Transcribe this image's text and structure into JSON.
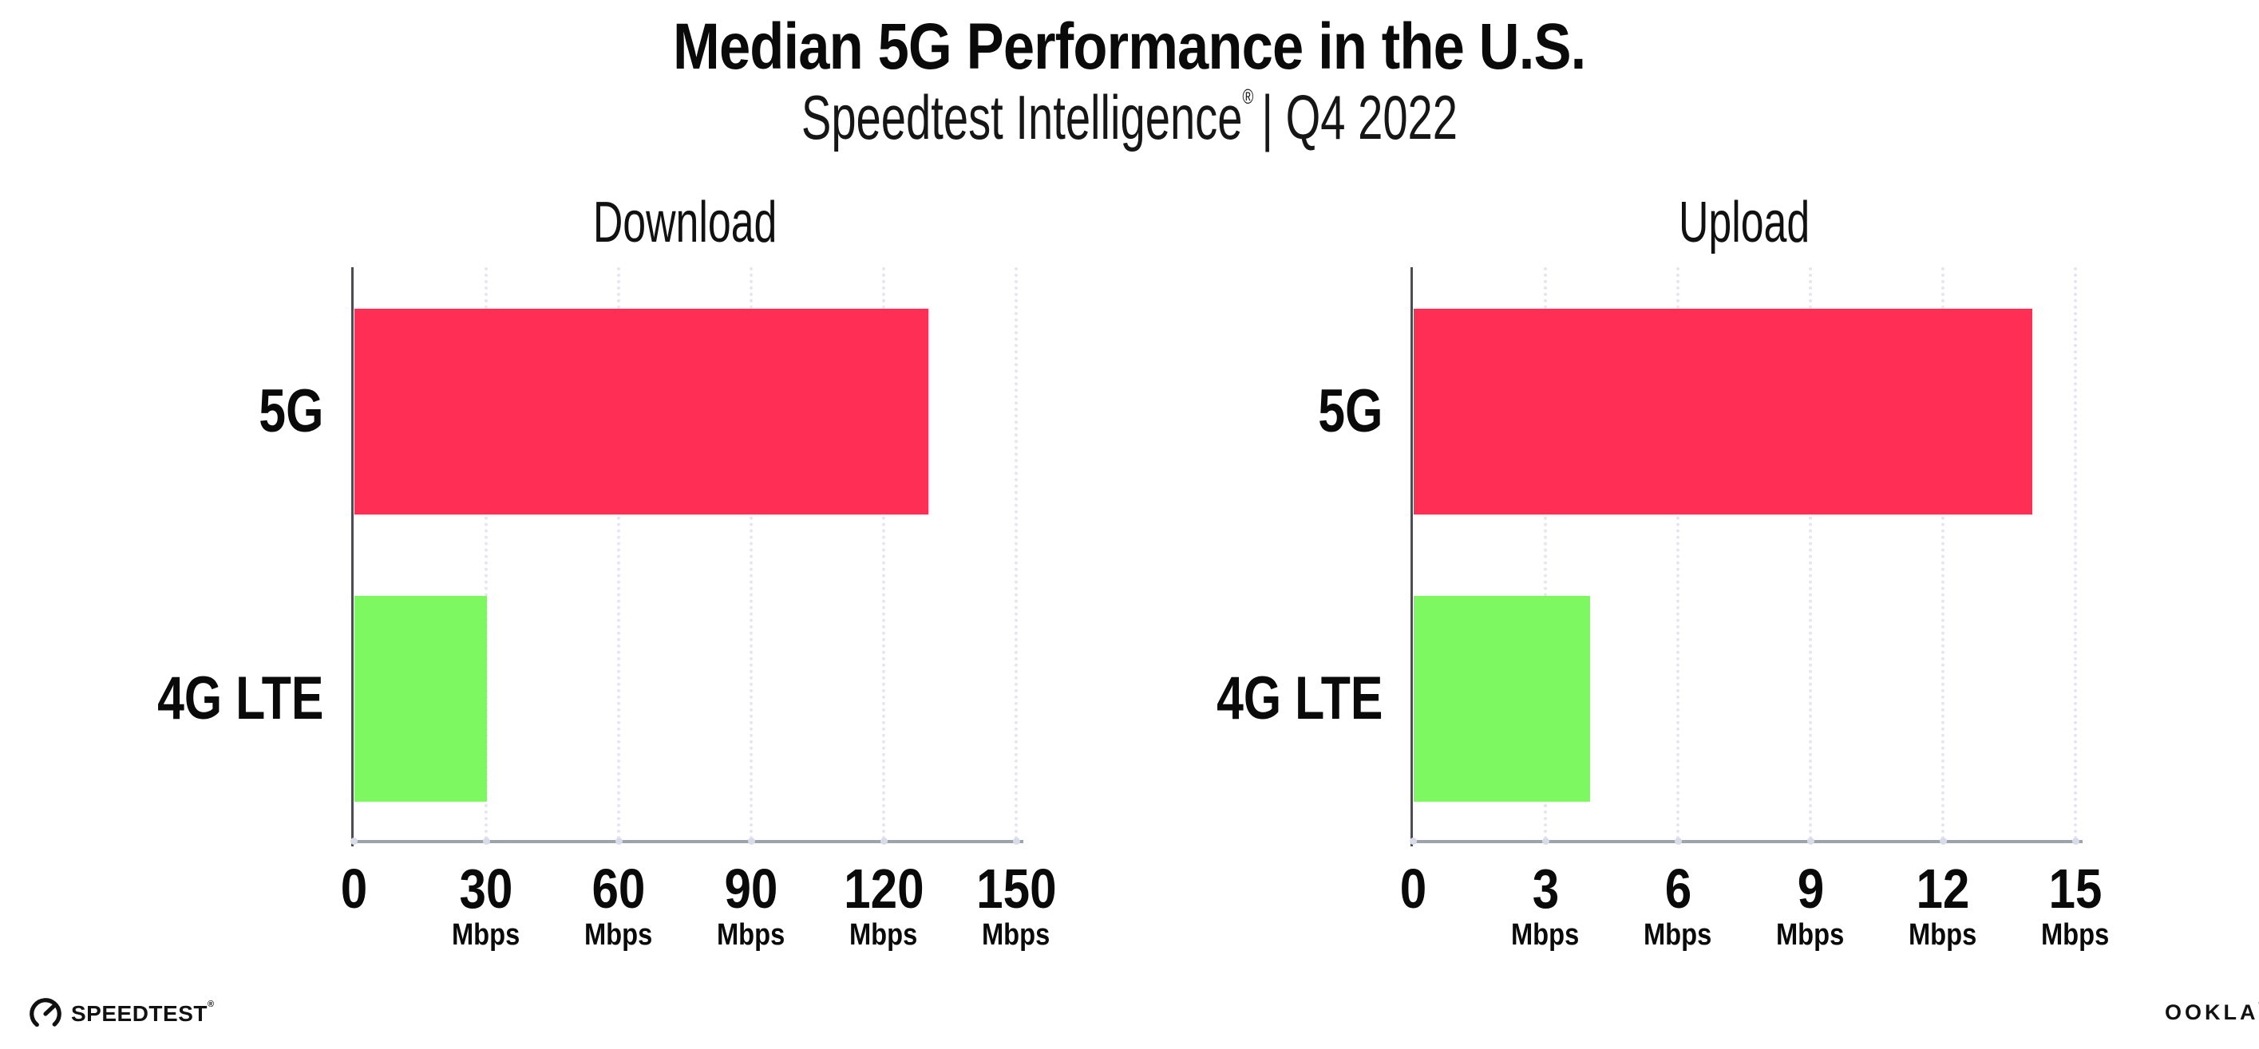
{
  "header": {
    "title": "Median 5G Performance in the U.S.",
    "subtitle_brand": "Speedtest Intelligence",
    "subtitle_reg": "®",
    "subtitle_rest": "| Q4 2022"
  },
  "footer": {
    "speedtest_label": "SPEEDTEST",
    "speedtest_reg": "®",
    "ookla_label": "OOKLA",
    "ookla_reg": "®"
  },
  "colors": {
    "bar_5g_pink": "#FF2E55",
    "bar_4g_green": "#7DF860",
    "grid_dot": "#E4E6F0",
    "tick_dot": "#D8DCE8",
    "x_axis": "#9CA3AB",
    "y_axis": "#4B4D53",
    "text": "#0A0A0A"
  },
  "chart_data": [
    {
      "type": "bar",
      "orientation": "horizontal",
      "title": "Download",
      "categories": [
        "5G",
        "4G LTE"
      ],
      "values": [
        130,
        30
      ],
      "bar_colors": [
        "#FF2E55",
        "#7DF860"
      ],
      "unit": "Mbps",
      "xticks": [
        0,
        30,
        60,
        90,
        120,
        150
      ],
      "xlim": [
        0,
        150
      ],
      "grid": "dotted-vertical",
      "legend": "none"
    },
    {
      "type": "bar",
      "orientation": "horizontal",
      "title": "Upload",
      "categories": [
        "5G",
        "4G LTE"
      ],
      "values": [
        14,
        4
      ],
      "bar_colors": [
        "#FF2E55",
        "#7DF860"
      ],
      "unit": "Mbps",
      "xticks": [
        0,
        3,
        6,
        9,
        12,
        15
      ],
      "xlim": [
        0,
        15
      ],
      "grid": "dotted-vertical",
      "legend": "none"
    }
  ]
}
